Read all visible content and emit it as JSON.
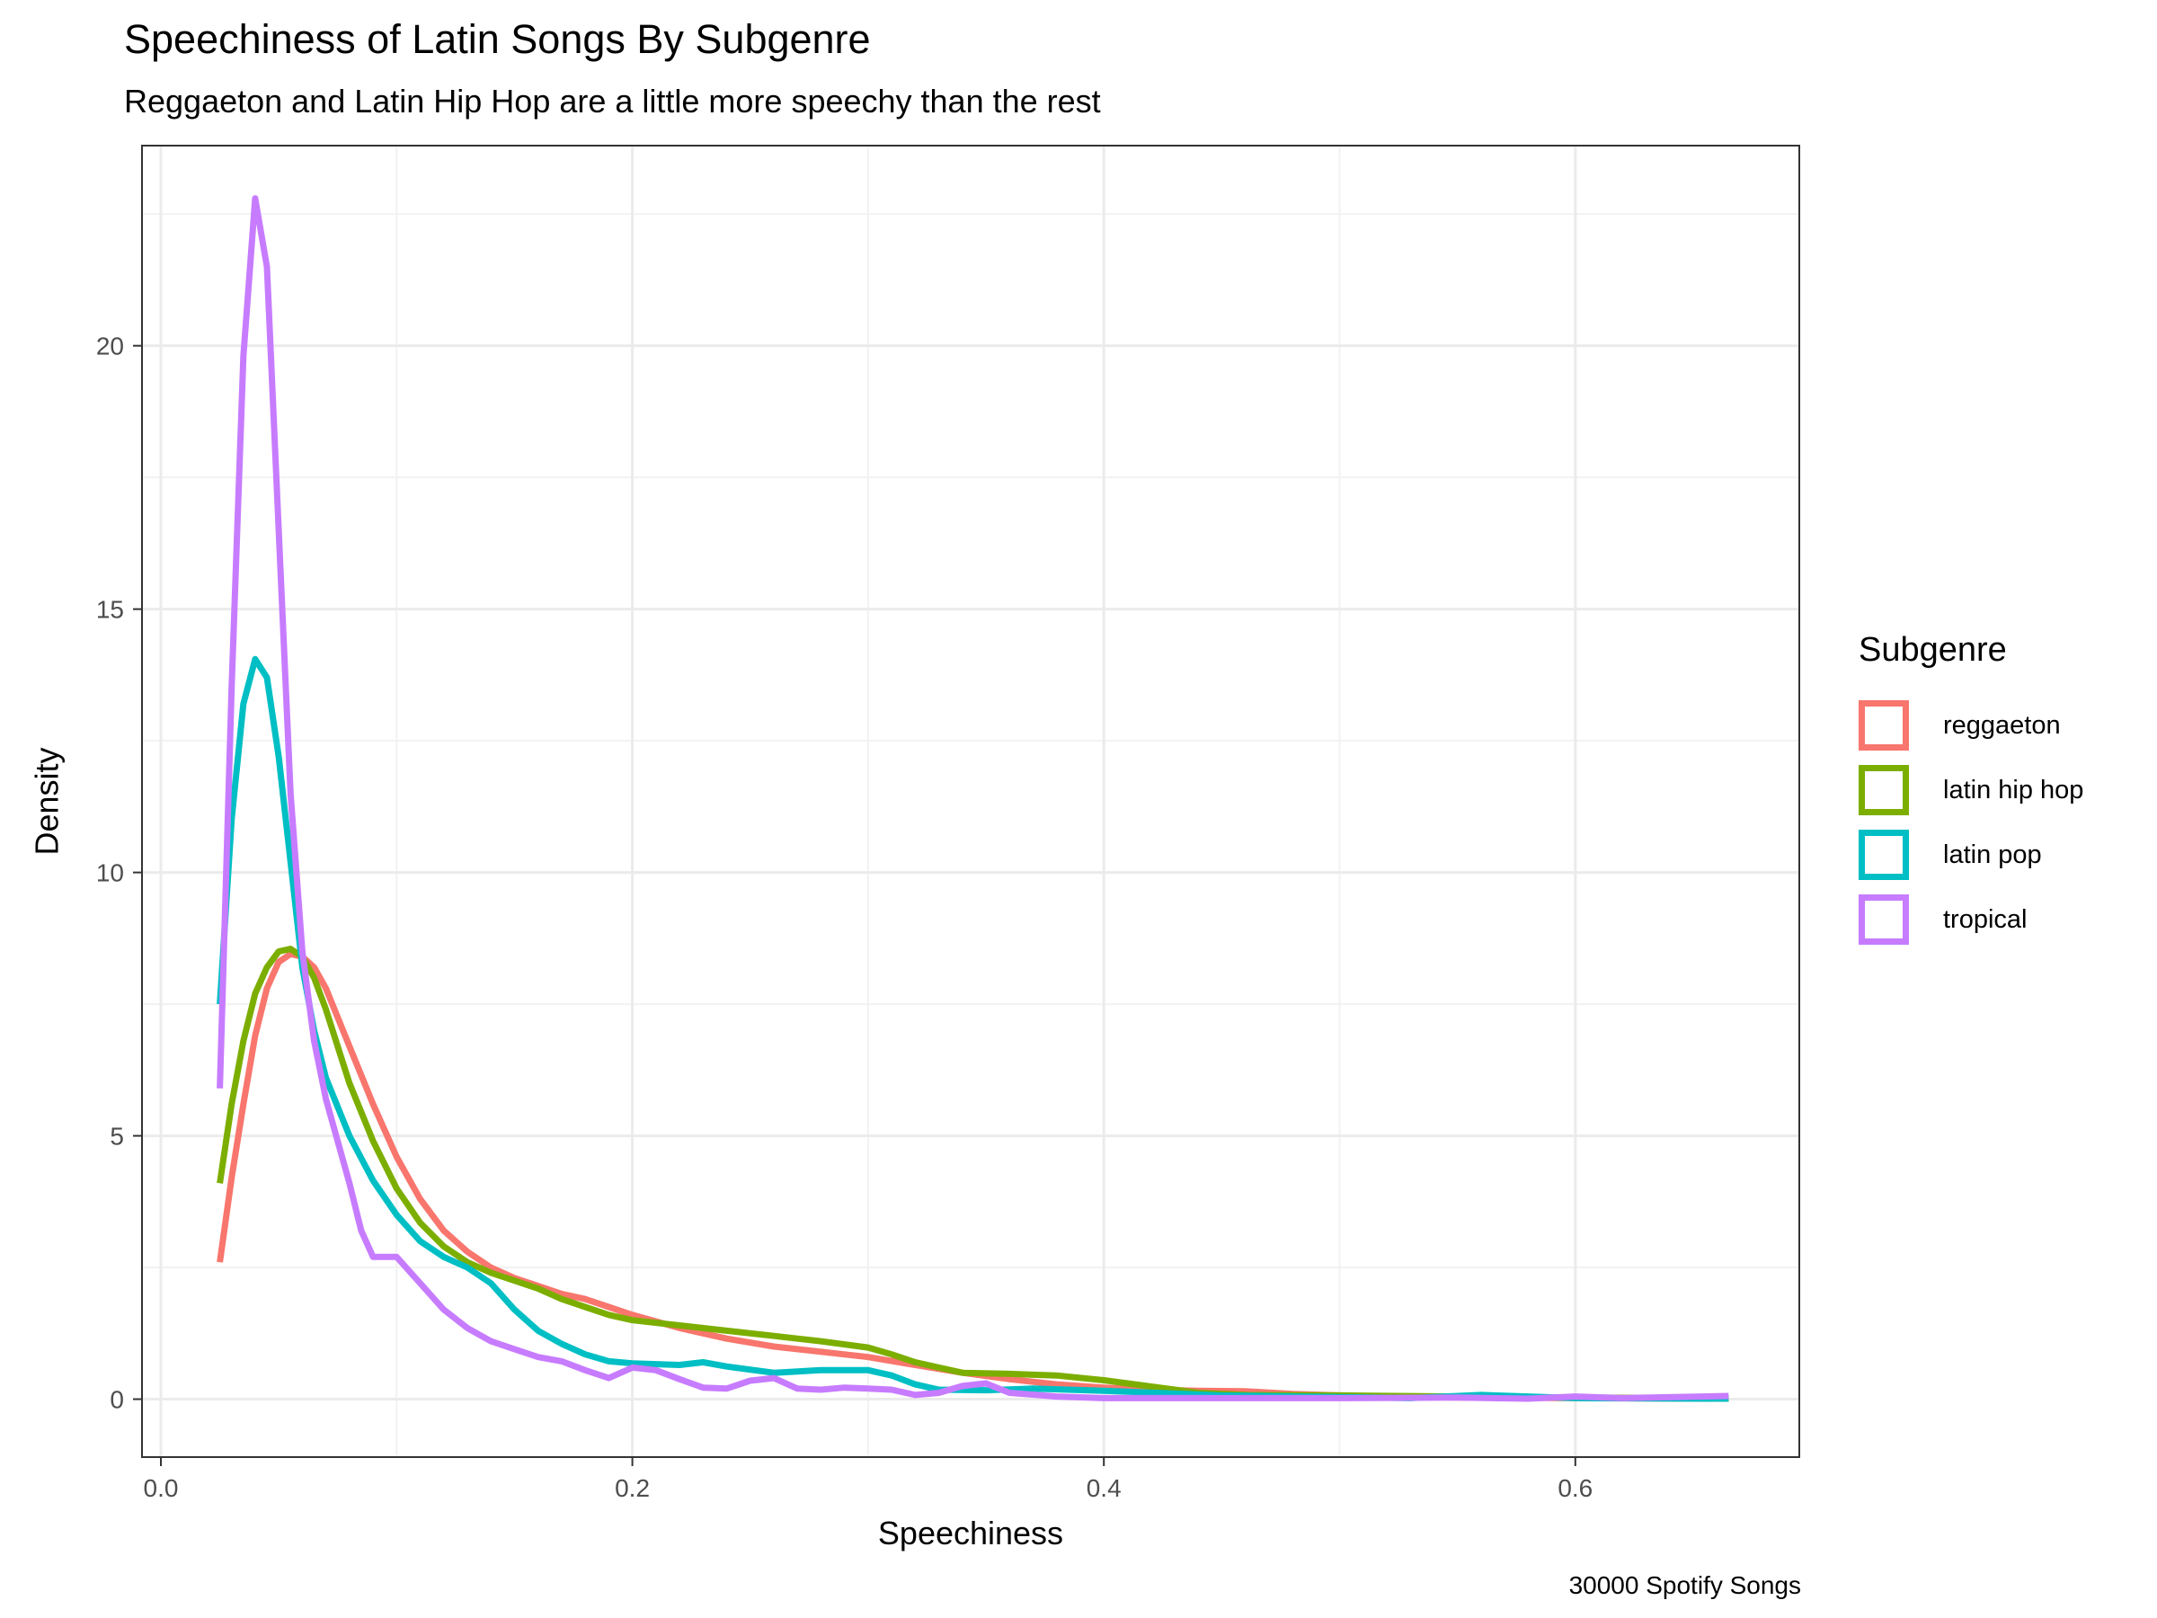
{
  "title": "Speechiness of Latin Songs By Subgenre",
  "subtitle": "Reggaeton and Latin Hip Hop are a little more speechy than the rest",
  "caption": "30000 Spotify Songs",
  "legend": {
    "title": "Subgenre"
  },
  "chart_data": {
    "type": "line",
    "xlabel": "Speechiness",
    "ylabel": "Density",
    "xlim": [
      -0.008,
      0.695
    ],
    "ylim": [
      -1.1,
      23.8
    ],
    "x_ticks": [
      "0.0",
      "0.2",
      "0.4",
      "0.6"
    ],
    "x_tick_values": [
      0.0,
      0.2,
      0.4,
      0.6
    ],
    "y_ticks": [
      "0",
      "5",
      "10",
      "15",
      "20"
    ],
    "y_tick_values": [
      0,
      5,
      10,
      15,
      20
    ],
    "grid": true,
    "legend_position": "right",
    "series": [
      {
        "name": "reggaeton",
        "color": "#F8766D",
        "points": [
          [
            0.025,
            2.6
          ],
          [
            0.03,
            4.2
          ],
          [
            0.035,
            5.6
          ],
          [
            0.04,
            6.9
          ],
          [
            0.045,
            7.8
          ],
          [
            0.05,
            8.3
          ],
          [
            0.055,
            8.45
          ],
          [
            0.06,
            8.4
          ],
          [
            0.065,
            8.2
          ],
          [
            0.07,
            7.8
          ],
          [
            0.075,
            7.25
          ],
          [
            0.08,
            6.7
          ],
          [
            0.09,
            5.6
          ],
          [
            0.1,
            4.6
          ],
          [
            0.11,
            3.8
          ],
          [
            0.12,
            3.2
          ],
          [
            0.13,
            2.8
          ],
          [
            0.14,
            2.5
          ],
          [
            0.15,
            2.3
          ],
          [
            0.16,
            2.15
          ],
          [
            0.17,
            2.0
          ],
          [
            0.18,
            1.9
          ],
          [
            0.19,
            1.75
          ],
          [
            0.2,
            1.6
          ],
          [
            0.22,
            1.35
          ],
          [
            0.24,
            1.15
          ],
          [
            0.26,
            1.0
          ],
          [
            0.28,
            0.9
          ],
          [
            0.3,
            0.8
          ],
          [
            0.32,
            0.65
          ],
          [
            0.34,
            0.5
          ],
          [
            0.36,
            0.38
          ],
          [
            0.38,
            0.28
          ],
          [
            0.4,
            0.22
          ],
          [
            0.42,
            0.18
          ],
          [
            0.44,
            0.16
          ],
          [
            0.46,
            0.15
          ],
          [
            0.48,
            0.1
          ],
          [
            0.5,
            0.07
          ],
          [
            0.52,
            0.05
          ],
          [
            0.55,
            0.03
          ],
          [
            0.6,
            0.02
          ],
          [
            0.665,
            0.01
          ]
        ]
      },
      {
        "name": "latin hip hop",
        "color": "#7CAE00",
        "points": [
          [
            0.025,
            4.1
          ],
          [
            0.03,
            5.6
          ],
          [
            0.035,
            6.8
          ],
          [
            0.04,
            7.7
          ],
          [
            0.045,
            8.2
          ],
          [
            0.05,
            8.5
          ],
          [
            0.055,
            8.55
          ],
          [
            0.06,
            8.4
          ],
          [
            0.065,
            8.0
          ],
          [
            0.07,
            7.4
          ],
          [
            0.075,
            6.7
          ],
          [
            0.08,
            6.0
          ],
          [
            0.09,
            4.9
          ],
          [
            0.1,
            4.0
          ],
          [
            0.11,
            3.35
          ],
          [
            0.12,
            2.9
          ],
          [
            0.13,
            2.6
          ],
          [
            0.14,
            2.4
          ],
          [
            0.15,
            2.25
          ],
          [
            0.16,
            2.1
          ],
          [
            0.17,
            1.9
          ],
          [
            0.18,
            1.75
          ],
          [
            0.19,
            1.6
          ],
          [
            0.2,
            1.5
          ],
          [
            0.22,
            1.4
          ],
          [
            0.24,
            1.3
          ],
          [
            0.26,
            1.2
          ],
          [
            0.28,
            1.1
          ],
          [
            0.3,
            0.98
          ],
          [
            0.31,
            0.85
          ],
          [
            0.32,
            0.7
          ],
          [
            0.34,
            0.5
          ],
          [
            0.36,
            0.48
          ],
          [
            0.38,
            0.45
          ],
          [
            0.4,
            0.36
          ],
          [
            0.42,
            0.24
          ],
          [
            0.44,
            0.12
          ],
          [
            0.46,
            0.08
          ],
          [
            0.5,
            0.07
          ],
          [
            0.55,
            0.05
          ],
          [
            0.6,
            0.03
          ],
          [
            0.665,
            0.02
          ]
        ]
      },
      {
        "name": "latin pop",
        "color": "#00BFC4",
        "points": [
          [
            0.025,
            7.5
          ],
          [
            0.03,
            11.0
          ],
          [
            0.035,
            13.2
          ],
          [
            0.04,
            14.05
          ],
          [
            0.045,
            13.7
          ],
          [
            0.05,
            12.2
          ],
          [
            0.055,
            10.2
          ],
          [
            0.06,
            8.2
          ],
          [
            0.065,
            7.0
          ],
          [
            0.07,
            6.1
          ],
          [
            0.08,
            5.0
          ],
          [
            0.09,
            4.15
          ],
          [
            0.1,
            3.5
          ],
          [
            0.11,
            3.0
          ],
          [
            0.12,
            2.7
          ],
          [
            0.13,
            2.5
          ],
          [
            0.14,
            2.2
          ],
          [
            0.15,
            1.7
          ],
          [
            0.16,
            1.3
          ],
          [
            0.17,
            1.05
          ],
          [
            0.18,
            0.85
          ],
          [
            0.19,
            0.72
          ],
          [
            0.2,
            0.68
          ],
          [
            0.22,
            0.65
          ],
          [
            0.23,
            0.7
          ],
          [
            0.24,
            0.62
          ],
          [
            0.26,
            0.5
          ],
          [
            0.28,
            0.55
          ],
          [
            0.3,
            0.55
          ],
          [
            0.31,
            0.45
          ],
          [
            0.32,
            0.28
          ],
          [
            0.33,
            0.18
          ],
          [
            0.35,
            0.17
          ],
          [
            0.37,
            0.2
          ],
          [
            0.4,
            0.16
          ],
          [
            0.45,
            0.07
          ],
          [
            0.5,
            0.04
          ],
          [
            0.53,
            0.02
          ],
          [
            0.56,
            0.08
          ],
          [
            0.6,
            0.02
          ],
          [
            0.665,
            0.01
          ]
        ]
      },
      {
        "name": "tropical",
        "color": "#C77CFF",
        "points": [
          [
            0.025,
            5.9
          ],
          [
            0.03,
            13.5
          ],
          [
            0.035,
            19.8
          ],
          [
            0.04,
            22.8
          ],
          [
            0.045,
            21.5
          ],
          [
            0.05,
            16.5
          ],
          [
            0.055,
            11.5
          ],
          [
            0.06,
            8.5
          ],
          [
            0.065,
            6.8
          ],
          [
            0.07,
            5.7
          ],
          [
            0.075,
            4.9
          ],
          [
            0.08,
            4.1
          ],
          [
            0.085,
            3.2
          ],
          [
            0.09,
            2.7
          ],
          [
            0.1,
            2.7
          ],
          [
            0.11,
            2.2
          ],
          [
            0.12,
            1.7
          ],
          [
            0.13,
            1.35
          ],
          [
            0.14,
            1.1
          ],
          [
            0.15,
            0.95
          ],
          [
            0.16,
            0.8
          ],
          [
            0.17,
            0.72
          ],
          [
            0.18,
            0.55
          ],
          [
            0.19,
            0.4
          ],
          [
            0.2,
            0.6
          ],
          [
            0.21,
            0.55
          ],
          [
            0.22,
            0.38
          ],
          [
            0.23,
            0.22
          ],
          [
            0.24,
            0.2
          ],
          [
            0.25,
            0.35
          ],
          [
            0.26,
            0.4
          ],
          [
            0.27,
            0.2
          ],
          [
            0.28,
            0.18
          ],
          [
            0.29,
            0.22
          ],
          [
            0.3,
            0.2
          ],
          [
            0.31,
            0.18
          ],
          [
            0.32,
            0.08
          ],
          [
            0.33,
            0.12
          ],
          [
            0.34,
            0.25
          ],
          [
            0.35,
            0.3
          ],
          [
            0.36,
            0.12
          ],
          [
            0.38,
            0.05
          ],
          [
            0.4,
            0.02
          ],
          [
            0.45,
            0.02
          ],
          [
            0.5,
            0.02
          ],
          [
            0.55,
            0.03
          ],
          [
            0.58,
            0.01
          ],
          [
            0.6,
            0.05
          ],
          [
            0.62,
            0.02
          ],
          [
            0.665,
            0.06
          ]
        ]
      }
    ]
  }
}
